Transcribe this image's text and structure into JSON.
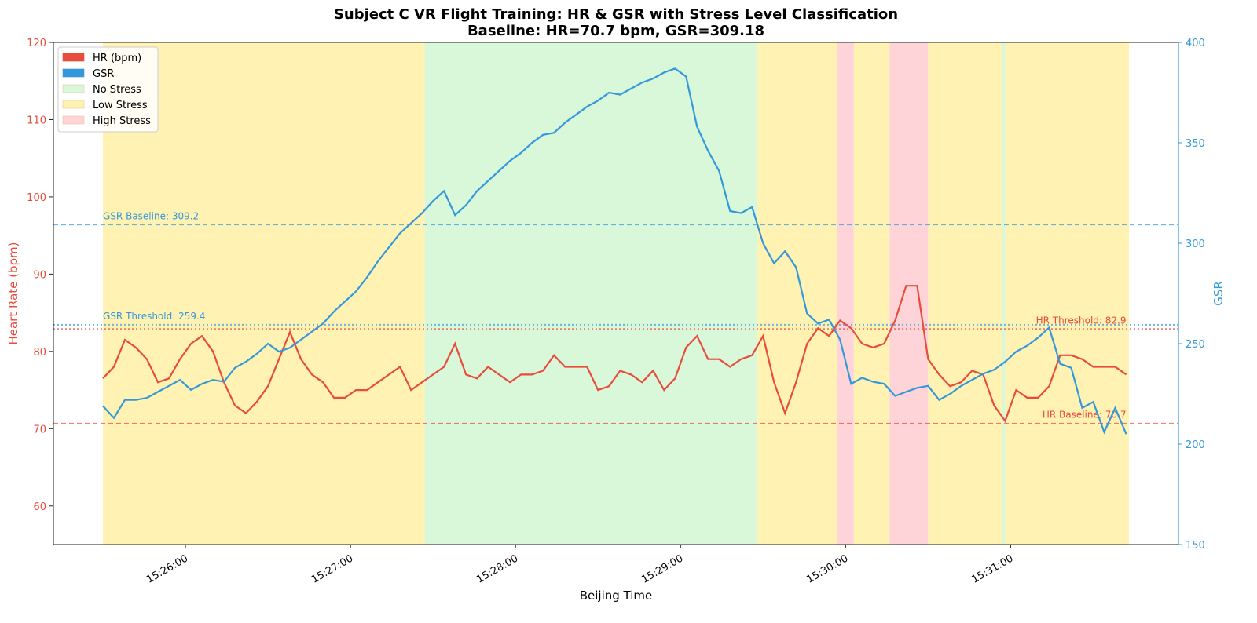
{
  "chart_data": {
    "type": "line",
    "title": "Subject C VR Flight Training: HR & GSR with Stress Level Classification",
    "subtitle": "Baseline: HR=70.7 bpm, GSR=309.18",
    "x_label": "Beijing Time",
    "y_label": "Heart Rate (bpm)",
    "y2_label": "GSR",
    "x": [
      "15:25:30",
      "15:25:34",
      "15:25:38",
      "15:25:42",
      "15:25:46",
      "15:25:50",
      "15:25:54",
      "15:25:58",
      "15:26:02",
      "15:26:06",
      "15:26:10",
      "15:26:14",
      "15:26:18",
      "15:26:22",
      "15:26:26",
      "15:26:30",
      "15:26:34",
      "15:26:38",
      "15:26:42",
      "15:26:46",
      "15:26:50",
      "15:26:54",
      "15:26:58",
      "15:27:02",
      "15:27:06",
      "15:27:10",
      "15:27:14",
      "15:27:18",
      "15:27:22",
      "15:27:26",
      "15:27:30",
      "15:27:34",
      "15:27:38",
      "15:27:42",
      "15:27:46",
      "15:27:50",
      "15:27:54",
      "15:27:58",
      "15:28:02",
      "15:28:06",
      "15:28:10",
      "15:28:14",
      "15:28:18",
      "15:28:22",
      "15:28:26",
      "15:28:30",
      "15:28:34",
      "15:28:38",
      "15:28:42",
      "15:28:46",
      "15:28:50",
      "15:28:54",
      "15:28:58",
      "15:29:02",
      "15:29:06",
      "15:29:10",
      "15:29:14",
      "15:29:18",
      "15:29:22",
      "15:29:26",
      "15:29:30",
      "15:29:34",
      "15:29:38",
      "15:29:42",
      "15:29:46",
      "15:29:50",
      "15:29:54",
      "15:29:58",
      "15:30:02",
      "15:30:06",
      "15:30:10",
      "15:30:14",
      "15:30:18",
      "15:30:22",
      "15:30:26",
      "15:30:30",
      "15:30:34",
      "15:30:38",
      "15:30:42",
      "15:30:46",
      "15:30:50",
      "15:30:54",
      "15:30:58",
      "15:31:02",
      "15:31:06",
      "15:31:10",
      "15:31:14",
      "15:31:18",
      "15:31:22",
      "15:31:26",
      "15:31:30",
      "15:31:34",
      "15:31:38",
      "15:31:42"
    ],
    "series": [
      {
        "name": "HR (bpm)",
        "color": "#e74c3c",
        "axis": "y",
        "values": [
          76.5,
          78,
          81.5,
          80.5,
          79,
          76,
          76.5,
          79,
          81,
          82,
          80,
          76,
          73,
          72,
          73.5,
          75.5,
          79,
          82.5,
          79,
          77,
          76,
          74,
          74,
          75,
          75,
          76,
          77,
          78,
          75,
          76,
          77,
          78,
          81,
          77,
          76.5,
          78,
          77,
          76,
          77,
          77,
          77.5,
          79.5,
          78,
          78,
          78,
          75,
          75.5,
          77.5,
          77,
          76,
          77.5,
          75,
          76.5,
          80.5,
          82,
          79,
          79,
          78,
          79,
          79.5,
          82,
          76,
          72,
          76,
          81,
          83,
          82,
          84,
          83,
          81,
          80.5,
          81,
          84,
          88.5,
          88.5,
          79,
          77,
          75.5,
          76,
          77.5,
          77,
          73,
          71,
          75,
          74,
          74,
          75.5,
          79.5,
          79.5,
          79,
          78,
          78,
          78,
          77
        ]
      },
      {
        "name": "GSR",
        "color": "#3498db",
        "axis": "y2",
        "values": [
          219,
          213,
          222,
          222,
          223,
          226,
          229,
          232,
          227,
          230,
          232,
          231,
          238,
          241,
          245,
          250,
          246,
          248,
          252,
          256,
          260,
          266,
          271,
          276,
          283,
          291,
          298,
          305,
          310,
          315,
          321,
          326,
          314,
          319,
          326,
          331,
          336,
          341,
          345,
          350,
          354,
          355,
          360,
          364,
          368,
          371,
          375,
          374,
          377,
          380,
          382,
          385,
          387,
          383,
          358,
          346,
          336,
          316,
          315,
          318,
          300,
          290,
          296,
          288,
          265,
          260,
          262,
          252,
          230,
          233,
          231,
          230,
          224,
          226,
          228,
          229,
          222,
          225,
          229,
          232,
          235,
          237,
          241,
          246,
          249,
          253,
          258,
          240,
          238,
          218,
          221,
          206,
          218,
          205
        ]
      }
    ],
    "stress_levels": [
      {
        "name": "No Stress",
        "color": "#d9f7d9"
      },
      {
        "name": "Low Stress",
        "color": "#fff2b3"
      },
      {
        "name": "High Stress",
        "color": "#ffd4d8"
      }
    ],
    "regions": [
      {
        "start": "15:25:30",
        "end": "15:27:27",
        "level": "Low Stress"
      },
      {
        "start": "15:27:27",
        "end": "15:29:28",
        "level": "No Stress"
      },
      {
        "start": "15:29:28",
        "end": "15:29:57",
        "level": "Low Stress"
      },
      {
        "start": "15:29:57",
        "end": "15:30:03",
        "level": "High Stress"
      },
      {
        "start": "15:30:03",
        "end": "15:30:16",
        "level": "Low Stress"
      },
      {
        "start": "15:30:16",
        "end": "15:30:30",
        "level": "High Stress"
      },
      {
        "start": "15:30:30",
        "end": "15:30:57",
        "level": "Low Stress"
      },
      {
        "start": "15:30:57",
        "end": "15:30:58",
        "level": "No Stress"
      },
      {
        "start": "15:30:58",
        "end": "15:31:43",
        "level": "Low Stress"
      }
    ],
    "reference_lines": [
      {
        "label": "GSR Baseline: 309.2",
        "value": 309.18,
        "axis": "y2",
        "color": "#3498db",
        "style": "dashed"
      },
      {
        "label": "GSR Threshold: 259.4",
        "value": 259.4,
        "axis": "y2",
        "color": "#3498db",
        "style": "dotted"
      },
      {
        "label": "HR Threshold: 82.9",
        "value": 82.9,
        "axis": "y",
        "color": "#e74c3c",
        "style": "dotted"
      },
      {
        "label": "HR Baseline: 70.7",
        "value": 70.7,
        "axis": "y",
        "color": "#e74c3c",
        "style": "dashed"
      }
    ],
    "xlim": [
      "15:25:12",
      "15:32:01"
    ],
    "xticks": [
      "15:26:00",
      "15:27:00",
      "15:28:00",
      "15:29:00",
      "15:30:00",
      "15:31:00"
    ],
    "ylim": [
      55,
      120
    ],
    "yticks": [
      60,
      70,
      80,
      90,
      100,
      110,
      120
    ],
    "y2lim": [
      150,
      400
    ],
    "y2ticks": [
      150,
      200,
      250,
      300,
      350,
      400
    ],
    "legend": "upper left"
  }
}
